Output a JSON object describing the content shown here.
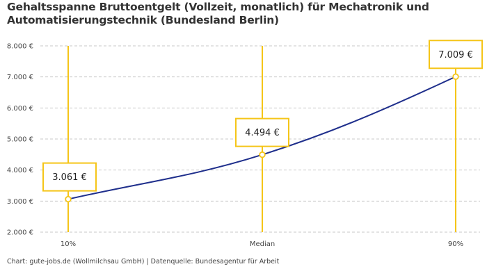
{
  "chart_data": {
    "type": "line",
    "title_lines": [
      "Gehaltsspanne Bruttoentgelt (Vollzeit, monatlich) für Mechatronik und",
      "Automatisierungstechnik (Bundesland Berlin)"
    ],
    "categories": [
      "10%",
      "Median",
      "90%"
    ],
    "values": [
      3061,
      4494,
      7009
    ],
    "data_labels": [
      "3.061 €",
      "4.494 €",
      "7.009 €"
    ],
    "y_ticks": [
      {
        "value": 2000,
        "label": "2.000 €"
      },
      {
        "value": 3000,
        "label": "3.000 €"
      },
      {
        "value": 4000,
        "label": "4.000 €"
      },
      {
        "value": 5000,
        "label": "5.000 €"
      },
      {
        "value": 6000,
        "label": "6.000 €"
      },
      {
        "value": 7000,
        "label": "7.000 €"
      },
      {
        "value": 8000,
        "label": "8.000 €"
      }
    ],
    "ylim": [
      2000,
      8000
    ],
    "grid": true,
    "colors": {
      "line": "#1f2f8c",
      "marker": "#f5c518",
      "grid": "#c8c8c8"
    }
  },
  "footer": "Chart: gute-jobs.de (Wollmilchsau GmbH) | Datenquelle: Bundesagentur für Arbeit"
}
